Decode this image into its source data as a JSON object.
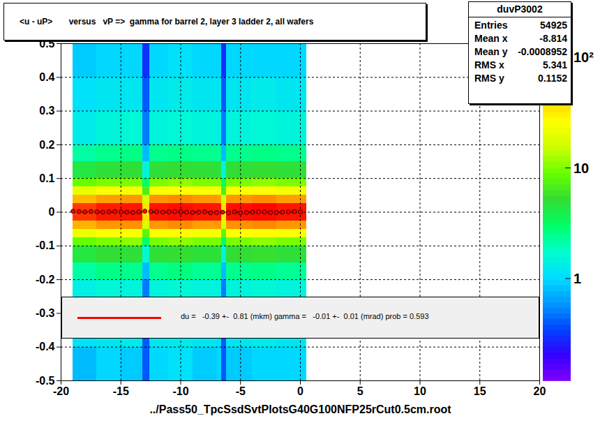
{
  "chart_data": {
    "type": "heatmap",
    "title": "<u - uP>       versus   vP =>  gamma for barrel 2, layer 3 ladder 2, all wafers",
    "x_label": "../Pass50_TpcSsdSvtPlotsG40G100NFP25rCut0.5cm.root",
    "xlim": [
      -20,
      20
    ],
    "xticks": [
      -20,
      -15,
      -10,
      -5,
      0,
      5,
      10,
      15,
      20
    ],
    "ylim": [
      -0.5,
      0.5
    ],
    "yticks": [
      -0.5,
      -0.4,
      -0.3,
      -0.2,
      -0.1,
      0,
      0.1,
      0.2,
      0.3,
      0.4,
      0.5
    ],
    "grid": true,
    "x_bins": [
      -19,
      -17,
      -15,
      -13.2,
      -12.6,
      -11,
      -9,
      -7,
      -6.6,
      -6.2,
      -4,
      -2,
      0.5
    ],
    "y_bins": [
      -0.5,
      -0.4,
      -0.3,
      -0.2,
      -0.15,
      -0.1,
      -0.075,
      -0.05,
      -0.025,
      0,
      0.025,
      0.05,
      0.075,
      0.1,
      0.15,
      0.2,
      0.3,
      0.4,
      0.5
    ],
    "z": [
      [
        0.8,
        1,
        0.9,
        0.4,
        1,
        1.1,
        0.9,
        1,
        0.4,
        0.9,
        1,
        1
      ],
      [
        1.1,
        1.2,
        1.3,
        0.4,
        1.2,
        1.3,
        1.2,
        1.1,
        0.4,
        1.2,
        1.3,
        1.2
      ],
      [
        1.4,
        1.6,
        1.5,
        0.5,
        1.5,
        1.6,
        1.5,
        1.4,
        0.5,
        1.5,
        1.6,
        1.5
      ],
      [
        2.2,
        2.6,
        2.5,
        0.8,
        2.5,
        2.7,
        2.4,
        2.5,
        0.8,
        2.5,
        2.6,
        2.4
      ],
      [
        4.5,
        5.2,
        5,
        1.6,
        5.1,
        5.3,
        4.9,
        5,
        1.5,
        5.2,
        5.4,
        5
      ],
      [
        9,
        10,
        11,
        3,
        10,
        11,
        10,
        10,
        3,
        10,
        11,
        10
      ],
      [
        22,
        26,
        25,
        8,
        25,
        27,
        24,
        25,
        8,
        26,
        27,
        25
      ],
      [
        52,
        60,
        62,
        18,
        60,
        64,
        58,
        60,
        18,
        62,
        65,
        60
      ],
      [
        100,
        118,
        122,
        36,
        120,
        125,
        118,
        120,
        35,
        124,
        128,
        122
      ],
      [
        98,
        116,
        120,
        35,
        122,
        126,
        120,
        118,
        36,
        125,
        130,
        120
      ],
      [
        50,
        58,
        60,
        18,
        62,
        64,
        60,
        58,
        18,
        60,
        64,
        58
      ],
      [
        21,
        25,
        24,
        7,
        25,
        26,
        25,
        24,
        7,
        25,
        26,
        24
      ],
      [
        9,
        10,
        10,
        3,
        10,
        11,
        10,
        10,
        3,
        10,
        11,
        10
      ],
      [
        4.4,
        5,
        5.1,
        1.5,
        5,
        5.2,
        5,
        4.9,
        1.5,
        5.1,
        5.3,
        5
      ],
      [
        2.2,
        2.5,
        2.6,
        0.8,
        2.5,
        2.6,
        2.5,
        2.4,
        0.8,
        2.5,
        2.6,
        2.5
      ],
      [
        1.3,
        1.5,
        1.6,
        0.5,
        1.5,
        1.6,
        1.5,
        1.4,
        0.5,
        1.5,
        1.6,
        1.5
      ],
      [
        1.1,
        1.2,
        1.2,
        0.4,
        1.2,
        1.3,
        1.2,
        1.2,
        0.4,
        1.2,
        1.3,
        1.2
      ],
      [
        0.9,
        1,
        1,
        0.3,
        1,
        1.1,
        1,
        1,
        0.3,
        1,
        1,
        1
      ]
    ],
    "colorbar_range": [
      0.12,
      134
    ],
    "colorbar_ticks": [
      1,
      10,
      {
        "value": 100,
        "label": "10²"
      }
    ],
    "profile": {
      "color": "#ff0000",
      "marker": "circle",
      "x": [
        -19,
        -18.5,
        -18,
        -17.5,
        -17,
        -16.5,
        -16,
        -15.5,
        -15,
        -14.5,
        -14,
        -13.5,
        -13,
        -12.5,
        -12,
        -11.5,
        -11,
        -10.5,
        -10,
        -9.5,
        -9,
        -8.5,
        -8,
        -7.5,
        -7,
        -6.5,
        -6,
        -5.5,
        -5,
        -4.5,
        -4,
        -3.5,
        -3,
        -2.5,
        -2,
        -1.5,
        -1,
        -0.5,
        0
      ],
      "values": [
        0.003,
        0.002,
        0.001,
        0.002,
        0.001,
        0,
        0.001,
        0.002,
        0.001,
        0,
        -0.001,
        0.001,
        0.003,
        0.002,
        0.001,
        0,
        0.001,
        0.002,
        0.001,
        0,
        -0.001,
        0,
        0.001,
        -0.002,
        -0.001,
        0,
        -0.002,
        0.001,
        -0.002,
        -0.001,
        0,
        0.001,
        0.001,
        -0.001,
        -0.001,
        0,
        0.001,
        0.002,
        0.001
      ],
      "error": [
        0.002,
        0.002,
        0.002,
        0.002,
        0.002,
        0.002,
        0.002,
        0.002,
        0.002,
        0.002,
        0.002,
        0.002,
        0.002,
        0.002,
        0.002,
        0.002,
        0.002,
        0.002,
        0.002,
        0.002,
        0.002,
        0.002,
        0.002,
        0.002,
        0.002,
        0.002,
        0.002,
        0.002,
        0.002,
        0.002,
        0.002,
        0.002,
        0.002,
        0.002,
        0.002,
        0.002,
        0.002,
        0.002,
        0.002
      ]
    },
    "stats": {
      "title": "duvP3002",
      "rows": [
        [
          "Entries",
          54925
        ],
        [
          "Mean x",
          -8.814
        ],
        [
          "Mean y",
          -0.0008952
        ],
        [
          "RMS x",
          5.341
        ],
        [
          "RMS y",
          0.1152
        ]
      ]
    },
    "fit": {
      "color": "#ff0000",
      "text": "du =   -0.39 +-  0.81 (mkm) gamma =   -0.01 +-  0.01 (mrad) prob = 0.593"
    }
  }
}
